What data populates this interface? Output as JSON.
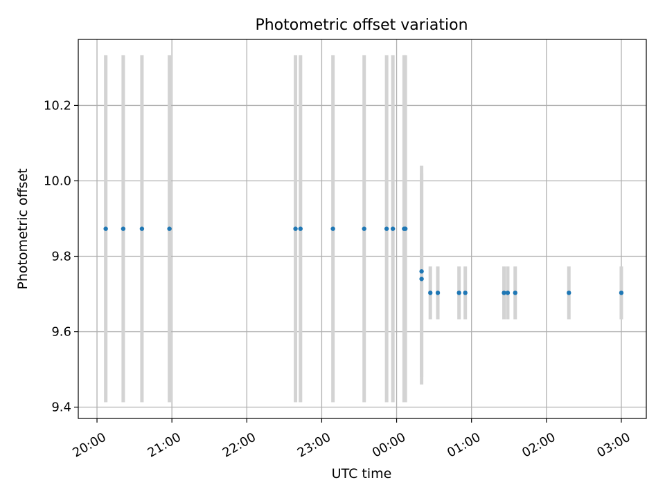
{
  "chart_data": {
    "type": "scatter",
    "title": "Photometric offset variation",
    "xlabel": "UTC time",
    "ylabel": "Photometric offset",
    "x_axis_kind": "time",
    "xlim": [
      "19:45",
      "03:20"
    ],
    "ylim": [
      9.37,
      10.375
    ],
    "x_ticks": [
      "20:00",
      "21:00",
      "22:00",
      "23:00",
      "00:00",
      "01:00",
      "02:00",
      "03:00"
    ],
    "y_ticks": [
      "9.4",
      "9.6",
      "9.8",
      "10.0",
      "10.2"
    ],
    "grid": true,
    "colors": {
      "point": "#1f77b4",
      "errorbar": "#d3d3d3",
      "grid": "#b0b0b0"
    },
    "points": [
      {
        "time": "20:07",
        "y": 9.873,
        "err": 0.46
      },
      {
        "time": "20:21",
        "y": 9.873,
        "err": 0.46
      },
      {
        "time": "20:36",
        "y": 9.873,
        "err": 0.46
      },
      {
        "time": "20:58",
        "y": 9.873,
        "err": 0.46
      },
      {
        "time": "22:39",
        "y": 9.873,
        "err": 0.46
      },
      {
        "time": "22:43",
        "y": 9.873,
        "err": 0.46
      },
      {
        "time": "23:09",
        "y": 9.873,
        "err": 0.46
      },
      {
        "time": "23:34",
        "y": 9.873,
        "err": 0.46
      },
      {
        "time": "23:52",
        "y": 9.873,
        "err": 0.46
      },
      {
        "time": "23:57",
        "y": 9.873,
        "err": 0.46
      },
      {
        "time": "00:06",
        "y": 9.873,
        "err": 0.46
      },
      {
        "time": "00:07",
        "y": 9.873,
        "err": 0.46
      },
      {
        "time": "00:20",
        "y": 9.76,
        "err": 0.28
      },
      {
        "time": "00:20",
        "y": 9.74,
        "err": 0.28
      },
      {
        "time": "00:27",
        "y": 9.703,
        "err": 0.07
      },
      {
        "time": "00:33",
        "y": 9.703,
        "err": 0.07
      },
      {
        "time": "00:50",
        "y": 9.703,
        "err": 0.07
      },
      {
        "time": "00:55",
        "y": 9.703,
        "err": 0.07
      },
      {
        "time": "01:26",
        "y": 9.703,
        "err": 0.07
      },
      {
        "time": "01:29",
        "y": 9.703,
        "err": 0.07
      },
      {
        "time": "01:35",
        "y": 9.703,
        "err": 0.07
      },
      {
        "time": "02:18",
        "y": 9.703,
        "err": 0.07
      },
      {
        "time": "03:00",
        "y": 9.703,
        "err": 0.07
      }
    ]
  }
}
